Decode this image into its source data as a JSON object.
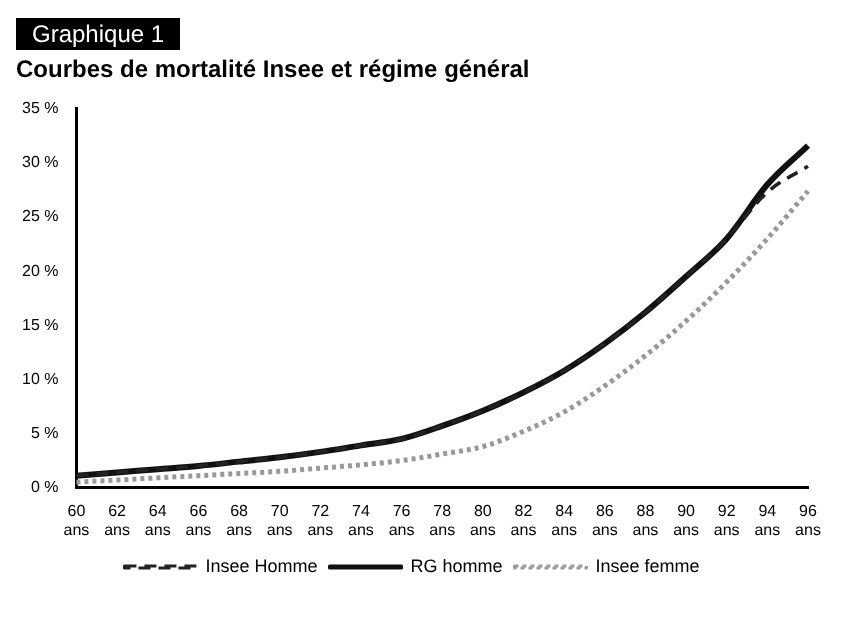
{
  "chart_data": {
    "type": "line",
    "title": "Courbes de mortalité Insee et régime général",
    "annotations": [
      "Graphique 1"
    ],
    "categories": [
      "60 ans",
      "62 ans",
      "64 ans",
      "66 ans",
      "68 ans",
      "70 ans",
      "72 ans",
      "74 ans",
      "76 ans",
      "78 ans",
      "80 ans",
      "82 ans",
      "84 ans",
      "86 ans",
      "88 ans",
      "90 ans",
      "92 ans",
      "94 ans",
      "96 ans"
    ],
    "series": [
      {
        "name": "RG homme",
        "color": "#111111",
        "line_style": "solid",
        "values": [
          1.1,
          1.4,
          1.7,
          2.0,
          2.4,
          2.8,
          3.3,
          3.9,
          4.5,
          5.7,
          7.1,
          8.8,
          10.8,
          13.3,
          16.2,
          19.5,
          23.0,
          28.0,
          31.6
        ]
      },
      {
        "name": "Insee Homme",
        "color": "#222222",
        "line_style": "dashed",
        "values": [
          1.1,
          1.4,
          1.7,
          2.0,
          2.4,
          2.8,
          3.3,
          3.9,
          4.5,
          5.7,
          7.1,
          8.8,
          10.8,
          13.3,
          16.2,
          19.5,
          23.0,
          27.3,
          29.7
        ]
      },
      {
        "name": "Insee femme",
        "color": "#999999",
        "line_style": "dotted",
        "values": [
          0.5,
          0.7,
          0.9,
          1.1,
          1.3,
          1.5,
          1.8,
          2.1,
          2.5,
          3.1,
          3.8,
          5.2,
          7.0,
          9.4,
          12.2,
          15.4,
          19.0,
          23.0,
          27.4
        ]
      }
    ],
    "ylim": [
      0,
      35
    ],
    "yticks": [
      {
        "value": 0,
        "label": "0 %"
      },
      {
        "value": 5,
        "label": "5 %"
      },
      {
        "value": 10,
        "label": "10 %"
      },
      {
        "value": 15,
        "label": "15 %"
      },
      {
        "value": 20,
        "label": "20 %"
      },
      {
        "value": 25,
        "label": "25 %"
      },
      {
        "value": 30,
        "label": "30 %"
      },
      {
        "value": 35,
        "label": "35 %"
      }
    ],
    "grid": false,
    "legend": "bottom",
    "marker": "none"
  }
}
